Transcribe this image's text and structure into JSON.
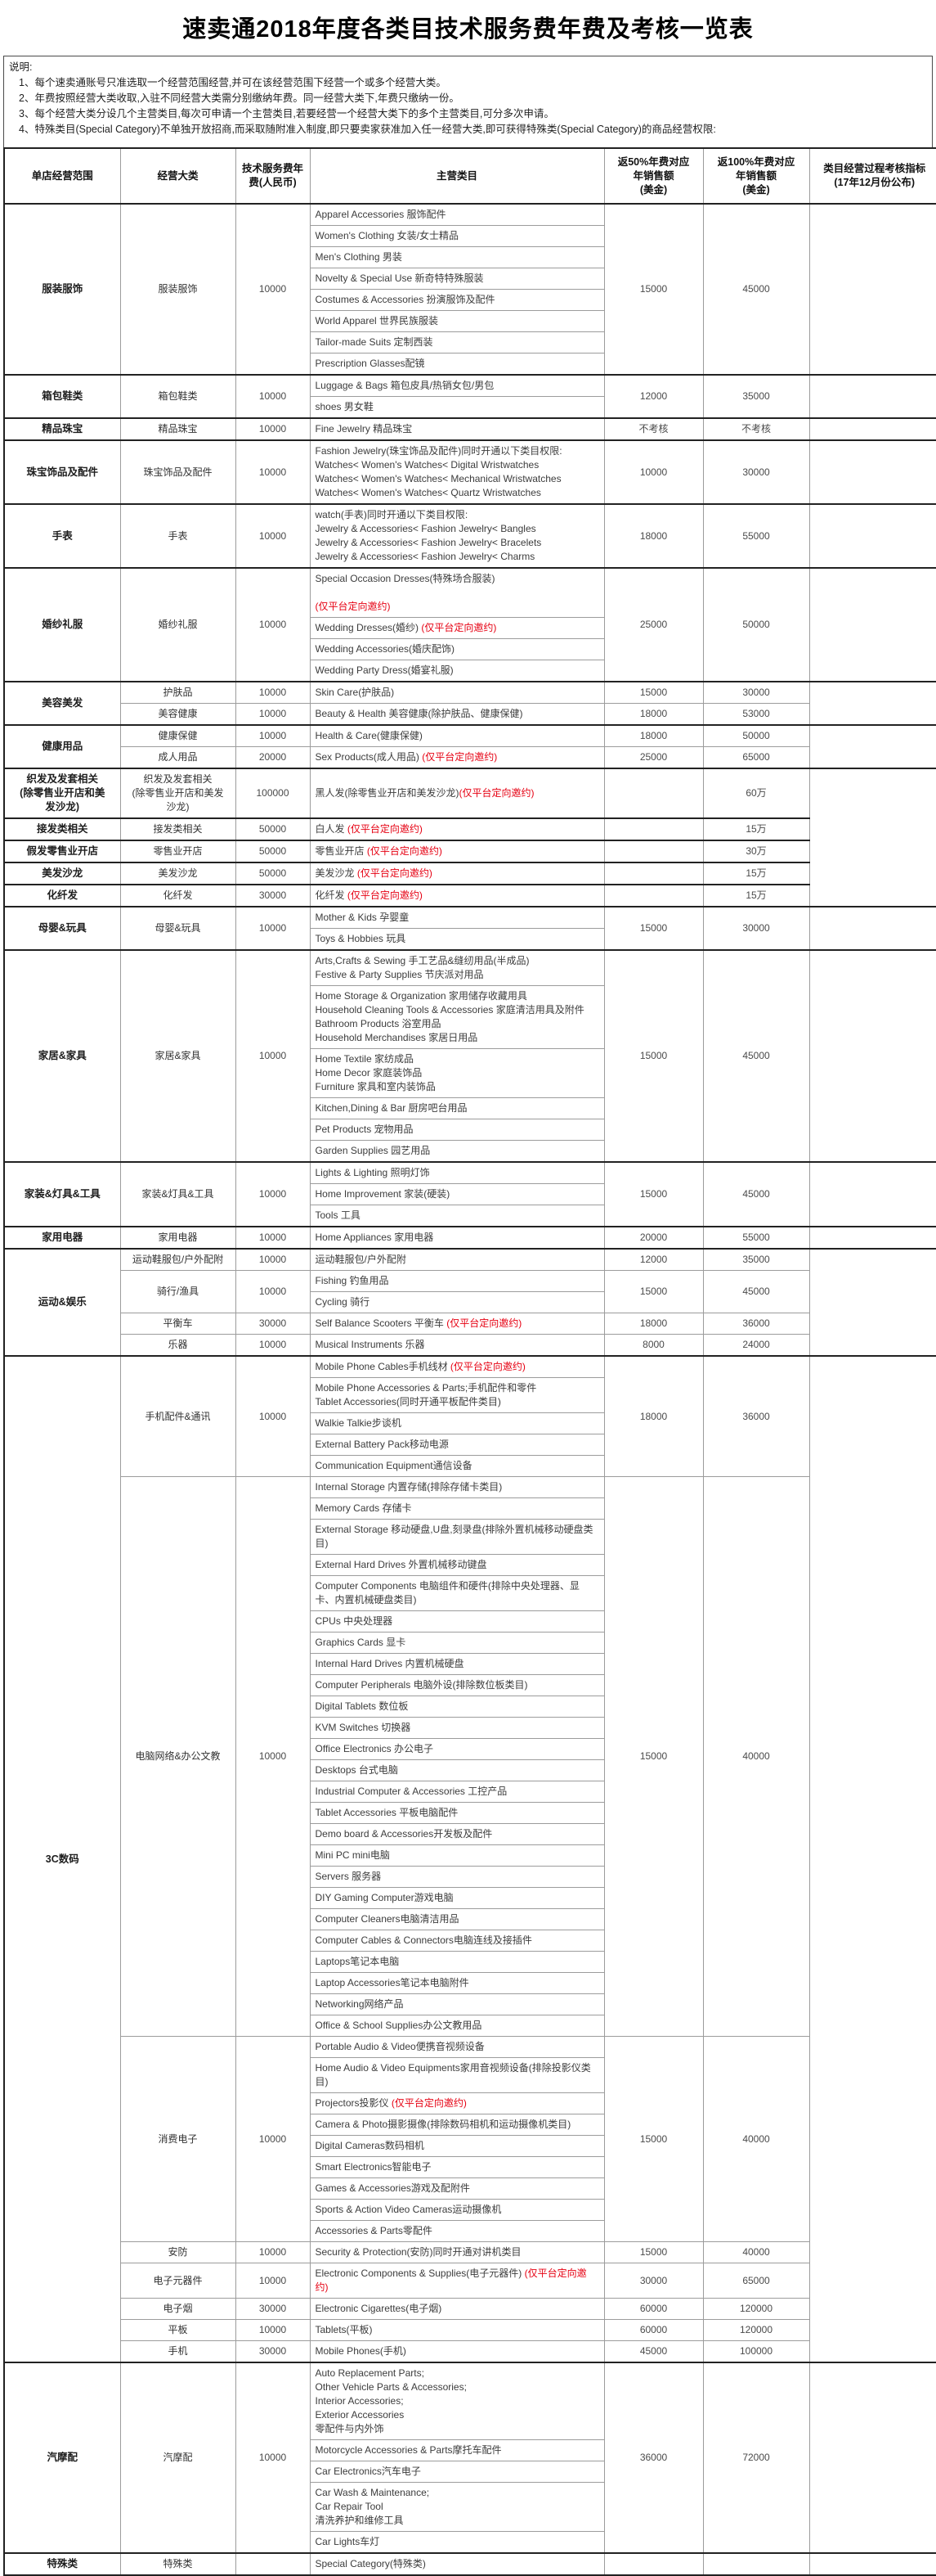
{
  "title": "速卖通2018年度各类目技术服务费年费及考核一览表",
  "notes": {
    "label": "说明:",
    "items": [
      "1、每个速卖通账号只准选取一个经营范围经营,并可在该经营范围下经营一个或多个经营大类。",
      "2、年费按照经营大类收取,入驻不同经营大类需分别缴纳年费。同一经营大类下,年费只缴纳一份。",
      "3、每个经营大类分设几个主营类目,每次可申请一个主营类目,若要经营一个经营大类下的多个主营类目,可分多次申请。",
      "4、特殊类目(Special Category)不单独开放招商,而采取随附准入制度,即只要卖家获准加入任一经营大类,即可获得特殊类(Special Category)的商品经营权限:"
    ]
  },
  "table": {
    "headers": [
      "单店经营范围",
      "经营大类",
      "技术服务费年\n费(人民币)",
      "主营类目",
      "返50%年费对应\n年销售额\n(美金)",
      "返100%年费对应\n年销售额\n(美金)",
      "类目经营过程考核指标\n(17年12月份公布)"
    ],
    "sections": [
      {
        "range": "服装服饰",
        "groups": [
          {
            "major": "服装服饰",
            "fee": "10000",
            "sale50": "15000",
            "sale100": "45000",
            "cats": [
              "Apparel  Accessories 服饰配件",
              "Women's Clothing 女装/女士精品",
              "Men's Clothing 男装",
              "Novelty & Special Use 新奇特特殊服装",
              "Costumes & Accessories 扮演服饰及配件",
              "World Apparel 世界民族服装",
              "Tailor-made Suits 定制西装",
              "Prescription Glasses配镜"
            ]
          }
        ]
      },
      {
        "range": "箱包鞋类",
        "groups": [
          {
            "major": "箱包鞋类",
            "fee": "10000",
            "sale50": "12000",
            "sale100": "35000",
            "cats": [
              "Luggage  & Bags 箱包皮具/热销女包/男包",
              "shoes 男女鞋"
            ]
          }
        ]
      },
      {
        "range": "精品珠宝",
        "groups": [
          {
            "major": "精品珠宝",
            "fee": "10000",
            "sale50": "不考核",
            "sale100": "不考核",
            "cats": [
              "Fine  Jewelry 精品珠宝"
            ]
          }
        ]
      },
      {
        "range": "珠宝饰品及配件",
        "groups": [
          {
            "major": "珠宝饰品及配件",
            "fee": "10000",
            "sale50": "10000",
            "sale100": "30000",
            "cats": [
              [
                "Fashion  Jewelry(珠宝饰品及配件)同时开通以下类目权限:",
                "Watches< Women's Watches< Digital Wristwatches",
                "Watches< Women's Watches< Mechanical Wristwatches",
                "Watches< Women's Watches< Quartz Wristwatches"
              ]
            ]
          }
        ]
      },
      {
        "range": "手表",
        "groups": [
          {
            "major": "手表",
            "fee": "10000",
            "sale50": "18000",
            "sale100": "55000",
            "cats": [
              [
                "watch(手表)同时开通以下类目权限:",
                "Jewelry & Accessories< Fashion Jewelry< Bangles",
                "Jewelry & Accessories< Fashion Jewelry< Bracelets",
                "Jewelry & Accessories< Fashion Jewelry< Charms"
              ]
            ]
          }
        ]
      },
      {
        "range": "婚纱礼服",
        "groups": [
          {
            "major": "婚纱礼服",
            "fee": "10000",
            "sale50": "25000",
            "sale100": "50000",
            "cats": [
              [
                "Special  Occasion Dresses(特殊场合服装)",
                "",
                [
                  {
                    "r": "(仅平台定向邀约)"
                  }
                ]
              ],
              [
                [
                  "Wedding Dresses(婚纱) ",
                  {
                    "r": "(仅平台定向邀约)"
                  }
                ]
              ],
              "Wedding Accessories(婚庆配饰)",
              "Wedding Party Dress(婚宴礼服)"
            ]
          }
        ]
      },
      {
        "range": "美容美发",
        "groups": [
          {
            "major": "护肤品",
            "fee": "10000",
            "sale50": "15000",
            "sale100": "30000",
            "cats": [
              "Skin  Care(护肤品)"
            ]
          },
          {
            "major": "美容健康",
            "fee": "10000",
            "sale50": "18000",
            "sale100": "53000",
            "cats": [
              "Beauty  & Health 美容健康(除护肤品、健康保健)"
            ]
          }
        ]
      },
      {
        "range": "健康用品",
        "groups": [
          {
            "major": "健康保健",
            "fee": "10000",
            "sale50": "18000",
            "sale100": "50000",
            "cats": [
              "Health  & Care(健康保健)"
            ]
          },
          {
            "major": "成人用品",
            "fee": "20000",
            "sale50": "25000",
            "sale100": "65000",
            "cats": [
              [
                [
                  "Sex  Products(成人用品) ",
                  {
                    "r": "(仅平台定向邀约)"
                  }
                ]
              ]
            ]
          }
        ]
      },
      {
        "range": "织发及发套相关\n(除零售业开店和美\n发沙龙)",
        "assess_span": 5,
        "groups": [
          {
            "major": "织发及发套相关\n(除零售业开店和美发\n沙龙)",
            "fee": "100000",
            "sale50": "",
            "sale100": "60万",
            "cats": [
              [
                [
                  "黑人发(除零售业开店和美发沙龙)",
                  {
                    "r": "(仅平台定向邀约)"
                  }
                ]
              ]
            ]
          }
        ]
      },
      {
        "range": "接发类相关",
        "groups": [
          {
            "major": "接发类相关",
            "fee": "50000",
            "sale50": "",
            "sale100": "15万",
            "cats": [
              [
                [
                  "白人发 ",
                  {
                    "r": "(仅平台定向邀约)"
                  }
                ]
              ]
            ]
          }
        ]
      },
      {
        "range": "假发零售业开店",
        "groups": [
          {
            "major": "零售业开店",
            "fee": "50000",
            "sale50": "",
            "sale100": "30万",
            "cats": [
              [
                [
                  "零售业开店 ",
                  {
                    "r": "(仅平台定向邀约)"
                  }
                ]
              ]
            ]
          }
        ]
      },
      {
        "range": "美发沙龙",
        "groups": [
          {
            "major": "美发沙龙",
            "fee": "50000",
            "sale50": "",
            "sale100": "15万",
            "cats": [
              [
                [
                  "美发沙龙 ",
                  {
                    "r": "(仅平台定向邀约)"
                  }
                ]
              ]
            ]
          }
        ]
      },
      {
        "range": "化纤发",
        "groups": [
          {
            "major": "化纤发",
            "fee": "30000",
            "sale50": "",
            "sale100": "15万",
            "cats": [
              [
                [
                  "化纤发 ",
                  {
                    "r": "(仅平台定向邀约)"
                  }
                ]
              ]
            ]
          }
        ]
      },
      {
        "range": "母婴&玩具",
        "groups": [
          {
            "major": "母婴&玩具",
            "fee": "10000",
            "sale50": "15000",
            "sale100": "30000",
            "cats": [
              "Mother  & Kids 孕婴童",
              "Toys & Hobbies 玩具"
            ]
          }
        ]
      },
      {
        "range": "家居&家具",
        "groups": [
          {
            "major": "家居&家具",
            "fee": "10000",
            "sale50": "15000",
            "sale100": "45000",
            "cats": [
              [
                "Arts,Crafts & Sewing  手工艺品&缝纫用品(半成品)",
                "Festive & Party Supplies 节庆派对用品"
              ],
              [
                "Home Storage & Organization 家用储存收藏用具",
                "Household Cleaning Tools & Accessories 家庭清洁用具及附件",
                "Bathroom Products 浴室用品",
                "Household Merchandises 家居日用品"
              ],
              [
                "Home Textile 家纺成品",
                "Home Decor 家庭装饰品",
                "Furniture 家具和室内装饰品"
              ],
              "Kitchen,Dining  & Bar 厨房吧台用品",
              "Pet Products  宠物用品",
              "Garden  Supplies 园艺用品"
            ]
          }
        ]
      },
      {
        "range": "家装&灯具&工具",
        "groups": [
          {
            "major": "家装&灯具&工具",
            "fee": "10000",
            "sale50": "15000",
            "sale100": "45000",
            "cats": [
              "Lights &  Lighting 照明灯饰",
              "Home Improvement 家装(硬装)",
              "Tools 工具"
            ]
          }
        ]
      },
      {
        "range": "家用电器",
        "groups": [
          {
            "major": "家用电器",
            "fee": "10000",
            "sale50": "20000",
            "sale100": "55000",
            "cats": [
              "Home  Appliances 家用电器"
            ]
          }
        ]
      },
      {
        "range": "运动&娱乐",
        "groups": [
          {
            "major": "运动鞋服包/户外配附",
            "fee": "10000",
            "sale50": "12000",
            "sale100": "35000",
            "cats": [
              "运动鞋服包/户外配附"
            ]
          },
          {
            "major": "骑行/渔具",
            "fee": "10000",
            "sale50": "15000",
            "sale100": "45000",
            "cats": [
              "Fishing  钓鱼用品",
              "Cycling 骑行"
            ]
          },
          {
            "major": "平衡车",
            "fee": "30000",
            "sale50": "18000",
            "sale100": "36000",
            "cats": [
              [
                [
                  "Self  Balance Scooters 平衡车 ",
                  {
                    "r": "(仅平台定向邀约)"
                  }
                ]
              ]
            ]
          },
          {
            "major": "乐器",
            "fee": "10000",
            "sale50": "8000",
            "sale100": "24000",
            "cats": [
              "Musical  Instruments 乐器"
            ]
          }
        ]
      },
      {
        "range": "3C数码",
        "groups": [
          {
            "major": "手机配件&通讯",
            "fee": "10000",
            "sale50": "18000",
            "sale100": "36000",
            "cats": [
              [
                [
                  "Mobile Phone Cables手机线材 ",
                  {
                    "r": "(仅平台定向邀约)"
                  }
                ]
              ],
              [
                "Mobile Phone Accessories &  Parts;手机配件和零件",
                "Tablet Accessories(同时开通平板配件类目)"
              ],
              "Walkie  Talkie步谈机",
              "External  Battery Pack移动电源",
              "Communication Equipment通信设备"
            ]
          },
          {
            "major": "电脑网络&办公文教",
            "fee": "10000",
            "sale50": "15000",
            "sale100": "40000",
            "cats": [
              "Internal Storage 内置存储(排除存储卡类目)",
              "Memory Cards 存储卡",
              "External Storage 移动硬盘,U盘,刻录盘(排除外置机械移动硬盘类目)",
              "External Hard Drives 外置机械移动键盘",
              "Computer Components 电脑组件和硬件(排除中央处理器、显卡、内置机械硬盘类目)",
              "CPUs 中央处理器",
              "Graphics Cards 显卡",
              "Internal Hard Drives 内置机械硬盘",
              "Computer Peripherals 电脑外设(排除数位板类目)",
              "Digital Tablets 数位板",
              "KVM Switches 切换器",
              "Office Electronics 办公电子",
              "Desktops 台式电脑",
              "Industrial Computer & Accessories 工控产品",
              "Tablet Accessories 平板电脑配件",
              "Demo board & Accessories开发板及配件",
              "Mini PC mini电脑",
              "Servers 服务器",
              "DIY Gaming Computer游戏电脑",
              "Computer Cleaners电脑清洁用品",
              "Computer Cables & Connectors电脑连线及接插件",
              "Laptops笔记本电脑",
              "Laptop Accessories笔记本电脑附件",
              "Networking网络产品",
              "Office & School Supplies办公文教用品"
            ]
          },
          {
            "major": "消费电子",
            "fee": "10000",
            "sale50": "15000",
            "sale100": "40000",
            "cats": [
              "Portable Audio  & Video便携音视频设备",
              "Home Audio & Video  Equipments家用音视频设备(排除投影仪类目)",
              [
                [
                  "Projectors投影仪 ",
                  {
                    "r": "(仅平台定向邀约)"
                  }
                ]
              ],
              "Camera & Photo摄影摄像(排除数码相机和运动摄像机类目)",
              "Digital Cameras数码相机",
              "Smart Electronics智能电子",
              "Games & Accessories游戏及配附件",
              "Sports & Action Video Cameras运动摄像机",
              "Accessories & Parts零配件"
            ]
          },
          {
            "major": "安防",
            "fee": "10000",
            "sale50": "15000",
            "sale100": "40000",
            "cats": [
              "Security  & Protection(安防)同时开通对讲机类目"
            ]
          },
          {
            "major": "电子元器件",
            "fee": "10000",
            "sale50": "30000",
            "sale100": "65000",
            "cats": [
              [
                [
                  "Electronic  Components & Supplies(电子元器件) ",
                  {
                    "r": "(仅平台定向邀约)"
                  }
                ]
              ]
            ]
          },
          {
            "major": "电子烟",
            "fee": "30000",
            "sale50": "60000",
            "sale100": "120000",
            "cats": [
              "Electronic  Cigarettes(电子烟)"
            ]
          },
          {
            "major": "平板",
            "fee": "10000",
            "sale50": "60000",
            "sale100": "120000",
            "cats": [
              "Tablets(平板)"
            ]
          },
          {
            "major": "手机",
            "fee": "30000",
            "sale50": "45000",
            "sale100": "100000",
            "cats": [
              "Mobile  Phones(手机)"
            ]
          }
        ]
      },
      {
        "range": "汽摩配",
        "groups": [
          {
            "major": "汽摩配",
            "fee": "10000",
            "sale50": "36000",
            "sale100": "72000",
            "cats": [
              [
                "Auto Replacement  Parts;",
                "Other Vehicle Parts & Accessories;",
                "Interior Accessories;",
                "Exterior Accessories",
                "零配件与内外饰"
              ],
              "Motorcycle Accessories & Parts摩托车配件",
              "Car Electronics汽车电子",
              [
                "Car Wash & Maintenance;",
                "Car Repair Tool",
                "清洗养护和维修工具"
              ],
              "Car Lights车灯"
            ]
          }
        ]
      },
      {
        "range": "特殊类",
        "groups": [
          {
            "major": "特殊类",
            "fee": "",
            "sale50": "",
            "sale100": "",
            "cats": [
              "Special  Category(特殊类)"
            ]
          }
        ]
      }
    ]
  }
}
